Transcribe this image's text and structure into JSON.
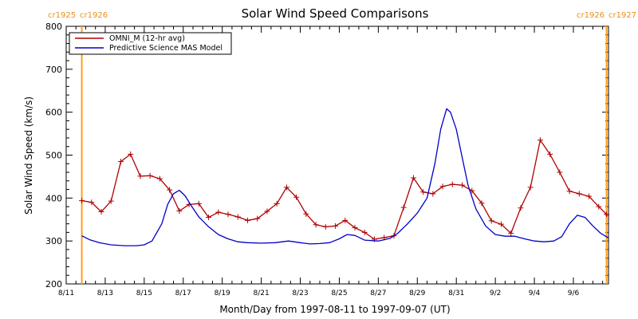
{
  "chart_data": {
    "type": "line",
    "title": "Solar Wind Speed Comparisons",
    "xlabel": "Month/Day from 1997-08-11 to 1997-09-07 (UT)",
    "ylabel": "Solar Wind Speed (km/s)",
    "xlim_days": [
      0,
      27.8
    ],
    "ylim": [
      200,
      800
    ],
    "yticks": [
      200,
      300,
      400,
      500,
      600,
      700,
      800
    ],
    "xtick_labels": [
      "8/11",
      "8/13",
      "8/15",
      "8/17",
      "8/19",
      "8/21",
      "8/23",
      "8/25",
      "8/27",
      "8/29",
      "8/31",
      "9/2",
      "9/4",
      "9/6"
    ],
    "xtick_days": [
      0,
      2,
      4,
      6,
      8,
      10,
      12,
      14,
      16,
      18,
      20,
      22,
      24,
      26
    ],
    "grid": false,
    "legend_position": "top-left",
    "carrington_markers": [
      {
        "labels": [
          "cr1925",
          "cr1926"
        ],
        "day": 0.8,
        "color": "#ff9e1f",
        "position": "left"
      },
      {
        "labels": [
          "cr1926",
          "cr1927"
        ],
        "day": 27.7,
        "color": "#ff9e1f",
        "position": "right"
      }
    ],
    "series": [
      {
        "name": "OMNI_M (12-hr avg)",
        "color": "#b00000",
        "marker": "plus",
        "x": [
          0.8,
          1.3,
          1.8,
          2.3,
          2.8,
          3.3,
          3.8,
          4.3,
          4.8,
          5.3,
          5.8,
          6.3,
          6.8,
          7.3,
          7.8,
          8.3,
          8.8,
          9.3,
          9.8,
          10.3,
          10.8,
          11.3,
          11.8,
          12.3,
          12.8,
          13.3,
          13.8,
          14.3,
          14.8,
          15.3,
          15.8,
          16.3,
          16.8,
          17.3,
          17.8,
          18.3,
          18.8,
          19.3,
          19.8,
          20.3,
          20.8,
          21.3,
          21.8,
          22.3,
          22.8,
          23.3,
          23.8,
          24.3,
          24.8,
          25.3,
          25.8,
          26.3,
          26.8,
          27.3,
          27.7
        ],
        "y": [
          394,
          390,
          368,
          393,
          485,
          502,
          451,
          452,
          445,
          419,
          370,
          385,
          387,
          355,
          367,
          362,
          356,
          348,
          352,
          369,
          387,
          425,
          402,
          363,
          338,
          333,
          335,
          348,
          331,
          320,
          304,
          308,
          312,
          378,
          447,
          414,
          410,
          427,
          432,
          430,
          417,
          388,
          347,
          339,
          318,
          377,
          425,
          535,
          502,
          460,
          416,
          410,
          404,
          380,
          362
        ]
      },
      {
        "name": "Predictive Science MAS Model",
        "color": "#0000c8",
        "marker": "none",
        "x": [
          0.8,
          1.2,
          1.7,
          2.3,
          3.0,
          3.6,
          4.0,
          4.4,
          4.9,
          5.2,
          5.5,
          5.8,
          6.1,
          6.4,
          6.8,
          7.3,
          7.8,
          8.3,
          8.8,
          9.3,
          10.0,
          10.7,
          11.4,
          12.0,
          12.5,
          13.0,
          13.5,
          14.0,
          14.4,
          14.8,
          15.3,
          16.0,
          16.6,
          17.0,
          17.5,
          18.0,
          18.5,
          18.9,
          19.2,
          19.5,
          19.7,
          20.0,
          20.3,
          20.6,
          21.0,
          21.5,
          22.0,
          22.5,
          23.0,
          23.5,
          24.0,
          24.5,
          25.0,
          25.4,
          25.8,
          26.2,
          26.6,
          27.0,
          27.4,
          27.8
        ],
        "y": [
          312,
          303,
          296,
          291,
          289,
          289,
          291,
          300,
          340,
          385,
          410,
          418,
          405,
          383,
          356,
          333,
          315,
          305,
          298,
          296,
          295,
          296,
          300,
          296,
          293,
          294,
          296,
          305,
          315,
          313,
          302,
          300,
          306,
          318,
          340,
          365,
          400,
          480,
          560,
          608,
          600,
          560,
          495,
          430,
          375,
          335,
          315,
          311,
          311,
          305,
          300,
          298,
          300,
          310,
          340,
          360,
          355,
          335,
          318,
          307
        ]
      }
    ]
  }
}
